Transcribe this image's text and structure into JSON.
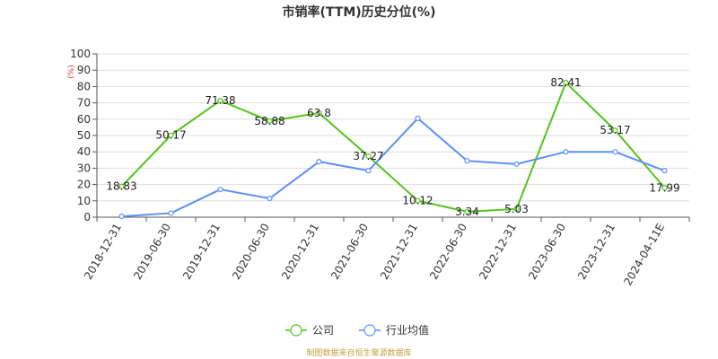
{
  "chart_data": {
    "type": "line",
    "title": "市销率(TTM)历史分位(%)",
    "y_unit": "(%)",
    "categories": [
      "2018-12-31",
      "2019-06-30",
      "2019-12-31",
      "2020-06-30",
      "2020-12-31",
      "2021-06-30",
      "2021-12-31",
      "2022-06-30",
      "2022-12-31",
      "2023-06-30",
      "2023-12-31",
      "2024-04-11E"
    ],
    "ylim": [
      0,
      100
    ],
    "yticks": [
      0,
      10,
      20,
      30,
      40,
      50,
      60,
      70,
      80,
      90,
      100
    ],
    "grid": true,
    "legend_position": "bottom-center",
    "series": [
      {
        "name": "公司",
        "color": "#52c41a",
        "values": [
          18.83,
          50.17,
          71.38,
          58.88,
          63.8,
          37.27,
          10.12,
          3.34,
          5.03,
          82.41,
          53.17,
          17.99
        ],
        "labels": [
          "18.83",
          "50.17",
          "71.38",
          "58.88",
          "63.8",
          "37.27",
          "10.12",
          "3.34",
          "5.03",
          "82.41",
          "53.17",
          "17.99"
        ]
      },
      {
        "name": "行业均值",
        "color": "#5b8ff9",
        "values": [
          0.5,
          2.5,
          17,
          11.5,
          34,
          28.5,
          60.5,
          34.5,
          32.5,
          40,
          40,
          28.5
        ]
      }
    ]
  },
  "source": "制图数据来自恒生聚源数据库"
}
